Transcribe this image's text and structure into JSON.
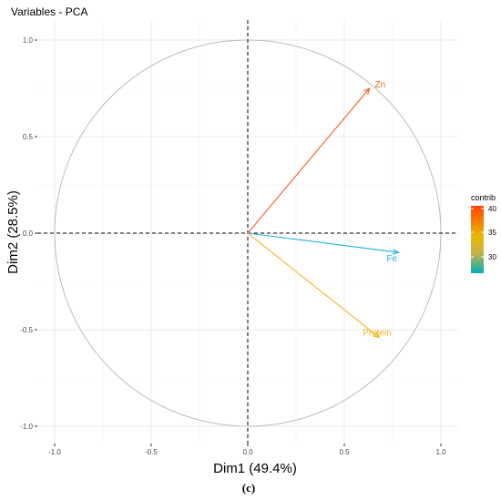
{
  "chart_data": {
    "type": "scatter",
    "title": "Variables - PCA",
    "xlabel": "Dim1 (49.4%)",
    "ylabel": "Dim2 (28.5%)",
    "xlim": [
      -1.05,
      1.05
    ],
    "ylim": [
      -1.05,
      1.05
    ],
    "x_ticks": [
      "-1.0",
      "-0.5",
      "0.0",
      "0.5",
      "1.0"
    ],
    "y_ticks": [
      "1.0",
      "0.5",
      "0.0",
      "-0.5",
      "-1.0"
    ],
    "grid": true,
    "variables": [
      {
        "name": "Zn",
        "x": 0.63,
        "y": 0.75,
        "color": "#f2611a"
      },
      {
        "name": "Fe",
        "x": 0.78,
        "y": -0.1,
        "color": "#1db0e0"
      },
      {
        "name": "Protein",
        "x": 0.68,
        "y": -0.54,
        "color": "#f0b21a"
      }
    ],
    "legend": {
      "title": "contrib",
      "ticks": [
        "40",
        "35",
        "30"
      ],
      "position": "right",
      "colors": [
        "#ff4500",
        "#e7b800",
        "#00afbb"
      ]
    }
  },
  "caption": "(c)"
}
